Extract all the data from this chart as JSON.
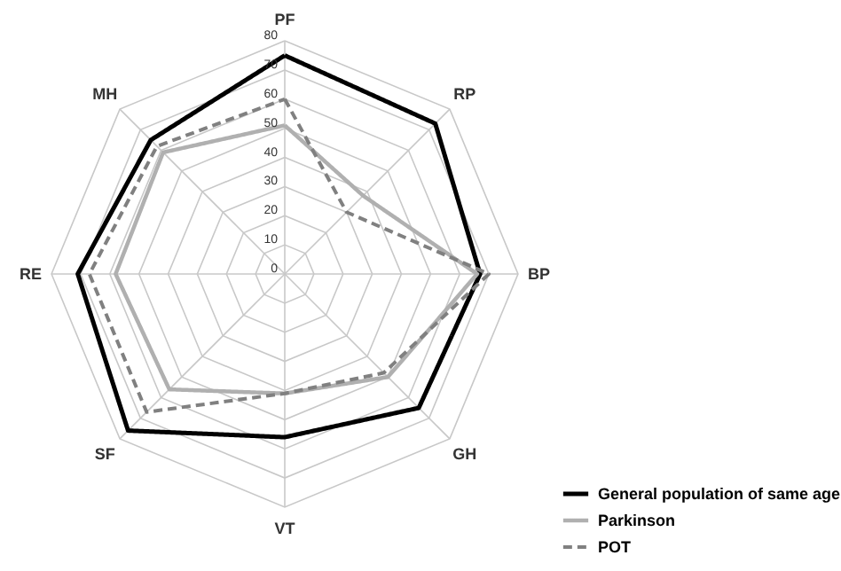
{
  "chart_data": {
    "type": "radar",
    "categories": [
      "PF",
      "RP",
      "BP",
      "GH",
      "VT",
      "SF",
      "RE",
      "MH"
    ],
    "ylim": [
      0,
      80
    ],
    "yticks": [
      0,
      10,
      20,
      30,
      40,
      50,
      60,
      70,
      80
    ],
    "grid": true,
    "legend": "bottom right",
    "series": [
      {
        "name": "General population of same age",
        "color": "#000000",
        "line_style": "solid",
        "values": [
          75,
          73,
          67,
          65,
          56,
          76,
          71,
          65
        ]
      },
      {
        "name": "Parkinson",
        "color": "#b0b0b0",
        "line_style": "solid",
        "values": [
          51,
          38,
          66,
          50,
          41,
          56,
          58,
          59
        ]
      },
      {
        "name": "POT",
        "color": "#808080",
        "line_style": "dashed",
        "values": [
          60,
          30,
          70,
          48,
          41,
          67,
          67,
          62
        ]
      }
    ]
  }
}
